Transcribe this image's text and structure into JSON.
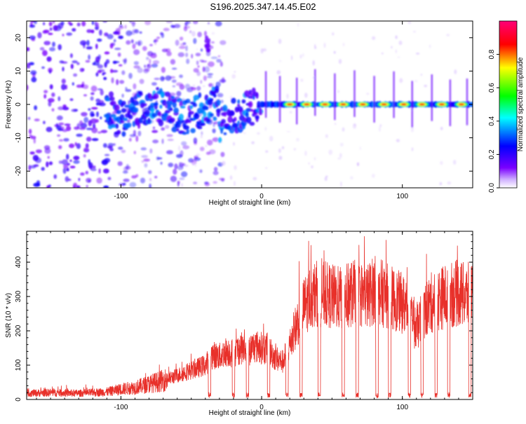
{
  "title": "S196.2025.347.14.45.E02",
  "colors": {
    "line": "#e8302a",
    "axis": "#000000"
  },
  "chart_data": [
    {
      "type": "heatmap",
      "xlabel": "Height of straight line (km)",
      "ylabel": "Frequency (Hz)",
      "xlim": [
        -167,
        150
      ],
      "ylim": [
        -25,
        25
      ],
      "xticks": [
        -100,
        0,
        100
      ],
      "yticks": [
        -20,
        -10,
        0,
        10,
        20
      ],
      "colorbar": {
        "label": "Normalized spectral amplitude",
        "range": [
          0.0,
          1.0
        ],
        "ticks": [
          "0.0",
          "0.2",
          "0.4",
          "0.6",
          "0.8"
        ],
        "tick_values": [
          0.0,
          0.2,
          0.4,
          0.6,
          0.8
        ],
        "colors": [
          "#ffffff",
          "#7a00ff",
          "#0000ff",
          "#00ffff",
          "#00ff00",
          "#ffff00",
          "#ff0000",
          "#ff0077"
        ]
      },
      "features": [
        {
          "name": "scattered noise",
          "x_range": [
            -167,
            -30
          ],
          "y_range": [
            -25,
            25
          ],
          "amplitude": 0.15
        },
        {
          "name": "signal band rising",
          "x_range": [
            -100,
            0
          ],
          "y_range": [
            -8,
            3
          ],
          "amplitude": 0.35
        },
        {
          "name": "stable signal band",
          "x_range": [
            0,
            150
          ],
          "center_frequency": 0,
          "amplitude": 0.85
        }
      ],
      "hot_spots_x": [
        20,
        32,
        45,
        58,
        72,
        87,
        101,
        114,
        128,
        142
      ]
    },
    {
      "type": "line",
      "xlabel": "Height of straight line (km)",
      "ylabel": "SNR (10 * v/v)",
      "xlim": [
        -167,
        150
      ],
      "ylim": [
        0,
        490
      ],
      "xticks": [
        -100,
        0,
        100
      ],
      "yticks": [
        0,
        100,
        200,
        300,
        400
      ],
      "series": [
        {
          "name": "SNR",
          "x": [
            -167,
            -150,
            -130,
            -110,
            -100,
            -90,
            -80,
            -70,
            -60,
            -50,
            -40,
            -35,
            -30,
            -25,
            -20,
            -15,
            -10,
            -5,
            0,
            5,
            10,
            15,
            20,
            25,
            30,
            35,
            40,
            45,
            50,
            55,
            60,
            65,
            70,
            75,
            80,
            85,
            90,
            95,
            100,
            105,
            110,
            115,
            120,
            125,
            130,
            135,
            140,
            145,
            150
          ],
          "values": [
            18,
            20,
            18,
            22,
            30,
            35,
            45,
            55,
            70,
            85,
            100,
            130,
            125,
            140,
            135,
            150,
            140,
            155,
            150,
            145,
            120,
            110,
            160,
            220,
            270,
            300,
            310,
            305,
            300,
            295,
            300,
            310,
            305,
            300,
            320,
            310,
            300,
            290,
            280,
            260,
            200,
            250,
            280,
            290,
            300,
            305,
            310,
            300,
            310
          ]
        }
      ],
      "dropouts_x": [
        -37,
        -20,
        -10,
        5,
        18,
        28,
        41,
        58,
        68,
        82,
        91,
        105,
        114,
        124,
        133,
        148
      ]
    }
  ]
}
